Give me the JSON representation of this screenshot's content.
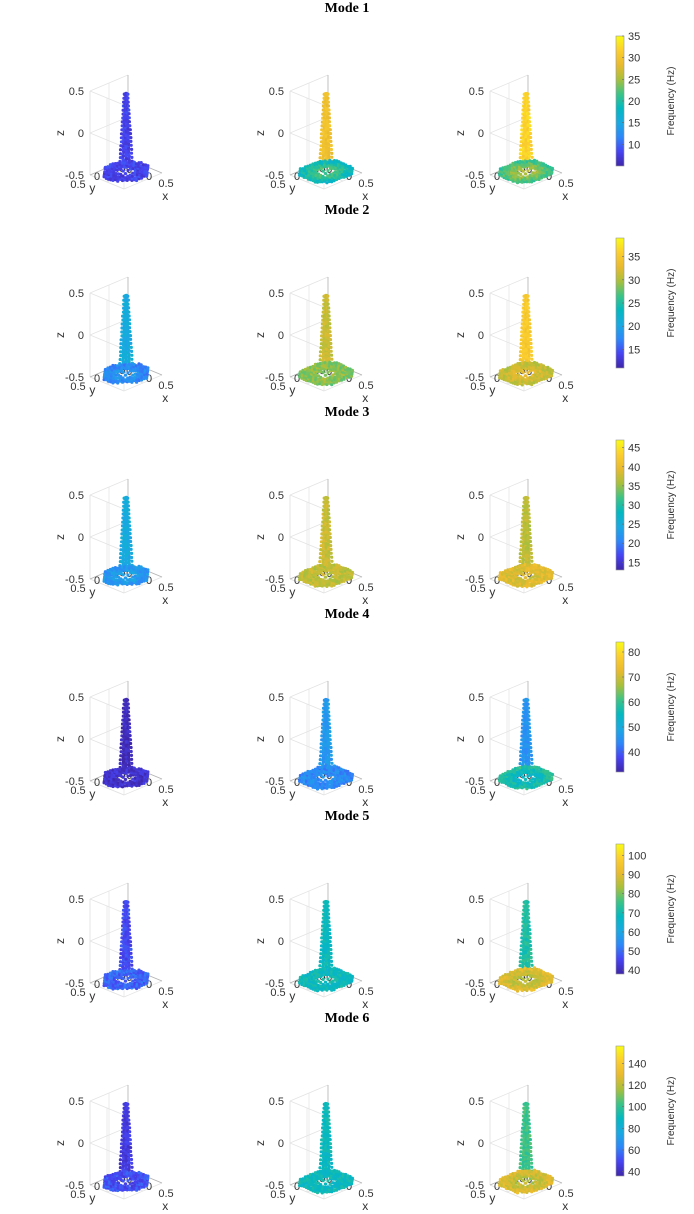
{
  "colormap": [
    "#3e26a8",
    "#4743f2",
    "#2e87f8",
    "#1aa9e1",
    "#04b8c0",
    "#3dc385",
    "#a9bf3c",
    "#e9ba2f",
    "#fcce2e",
    "#f9fb15"
  ],
  "chart_data": {
    "type": "scatter",
    "axes": {
      "xlabel": "x",
      "ylabel": "y",
      "zlabel": "z",
      "x_ticks": [
        "-0.5",
        "0",
        "0.5"
      ],
      "y_ticks": [
        "-0.5",
        "0",
        "0.5"
      ],
      "z_ticks": [
        "-0.5",
        "0",
        "0.5"
      ],
      "xlim": [
        -0.5,
        0.5
      ],
      "ylim": [
        -0.5,
        0.5
      ],
      "zlim": [
        -0.5,
        0.5
      ],
      "grid": true
    },
    "colorbar_label": "Frequency (Hz)",
    "modes": [
      {
        "title": "Mode 1",
        "ticks": [
          10,
          15,
          20,
          25,
          30,
          35
        ],
        "clim": [
          5,
          35
        ],
        "panels": [
          {
            "base": 0.1,
            "col": 0.1
          },
          {
            "base": 0.38,
            "col": 0.82
          },
          {
            "base": 0.48,
            "col": 0.9
          }
        ]
      },
      {
        "title": "Mode 2",
        "ticks": [
          15,
          20,
          25,
          30,
          35
        ],
        "clim": [
          11,
          39
        ],
        "panels": [
          {
            "base": 0.2,
            "col": 0.35
          },
          {
            "base": 0.6,
            "col": 0.72
          },
          {
            "base": 0.68,
            "col": 0.86
          }
        ]
      },
      {
        "title": "Mode 3",
        "ticks": [
          15,
          20,
          25,
          30,
          35,
          40,
          45
        ],
        "clim": [
          13,
          47
        ],
        "panels": [
          {
            "base": 0.25,
            "col": 0.35
          },
          {
            "base": 0.7,
            "col": 0.72
          },
          {
            "base": 0.78,
            "col": 0.7
          }
        ]
      },
      {
        "title": "Mode 4",
        "ticks": [
          40,
          50,
          60,
          70,
          80
        ],
        "clim": [
          32,
          84
        ],
        "panels": [
          {
            "base": 0.06,
            "col": 0.03
          },
          {
            "base": 0.22,
            "col": 0.28
          },
          {
            "base": 0.55,
            "col": 0.26
          }
        ]
      },
      {
        "title": "Mode 5",
        "ticks": [
          40,
          50,
          60,
          70,
          80,
          90,
          100
        ],
        "clim": [
          38,
          106
        ],
        "panels": [
          {
            "base": 0.18,
            "col": 0.12
          },
          {
            "base": 0.45,
            "col": 0.45
          },
          {
            "base": 0.82,
            "col": 0.5
          }
        ]
      },
      {
        "title": "Mode 6",
        "ticks": [
          40,
          60,
          80,
          100,
          120,
          140
        ],
        "clim": [
          36,
          156
        ],
        "panels": [
          {
            "base": 0.15,
            "col": 0.08
          },
          {
            "base": 0.45,
            "col": 0.45
          },
          {
            "base": 0.8,
            "col": 0.55
          }
        ]
      }
    ]
  }
}
